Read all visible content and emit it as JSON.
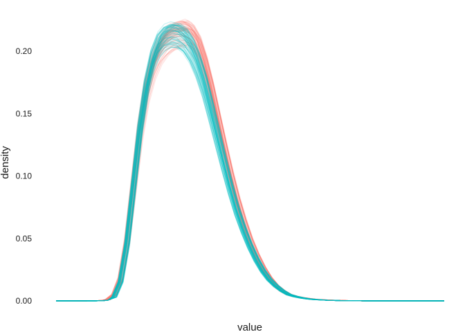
{
  "chart_data": {
    "type": "line",
    "title": "",
    "xlabel": "value",
    "ylabel": "density",
    "ylim": [
      0,
      0.23
    ],
    "yticks": [
      0.0,
      0.05,
      0.1,
      0.15,
      0.2
    ],
    "ytick_labels": [
      "0.00",
      "0.05",
      "0.10",
      "0.15",
      "0.20"
    ],
    "x_tick_labels_shown": false,
    "grid": false,
    "legend": "none",
    "x": [
      0,
      2,
      3,
      3.5,
      4,
      4.5,
      5,
      5.5,
      6,
      6.5,
      7,
      7.5,
      8,
      8.5,
      9,
      9.5,
      10,
      10.5,
      11,
      11.5,
      12,
      12.5,
      13,
      13.5,
      14,
      14.5,
      15,
      15.5,
      16,
      16.5,
      17,
      17.5,
      18,
      18.5,
      19,
      19.5,
      20,
      21,
      22,
      23,
      24,
      25,
      26,
      27,
      28,
      29,
      30
    ],
    "series": [
      {
        "color": "#F8766D",
        "opacity": 0.2,
        "replicates": 60,
        "values": [
          0,
          0,
          0.0001,
          0.0003,
          0.001,
          0.005,
          0.018,
          0.048,
          0.092,
          0.136,
          0.168,
          0.188,
          0.2,
          0.207,
          0.211,
          0.213,
          0.214,
          0.211,
          0.203,
          0.188,
          0.168,
          0.145,
          0.122,
          0.1,
          0.08,
          0.063,
          0.048,
          0.036,
          0.026,
          0.018,
          0.012,
          0.008,
          0.005,
          0.0035,
          0.0025,
          0.0018,
          0.0012,
          0.0006,
          0.0003,
          0.0001,
          0,
          0,
          0,
          0,
          0,
          0,
          0
        ]
      },
      {
        "color": "#00BFC4",
        "opacity": 0.2,
        "replicates": 60,
        "values": [
          0,
          0,
          0,
          0.0001,
          0.0005,
          0.003,
          0.015,
          0.045,
          0.09,
          0.135,
          0.169,
          0.192,
          0.205,
          0.211,
          0.213,
          0.212,
          0.208,
          0.2,
          0.188,
          0.172,
          0.152,
          0.131,
          0.11,
          0.09,
          0.072,
          0.057,
          0.044,
          0.033,
          0.024,
          0.017,
          0.012,
          0.008,
          0.005,
          0.0035,
          0.0024,
          0.0016,
          0.0011,
          0.0005,
          0.0002,
          0.0001,
          0,
          0,
          0,
          0,
          0,
          0,
          0
        ]
      }
    ]
  }
}
